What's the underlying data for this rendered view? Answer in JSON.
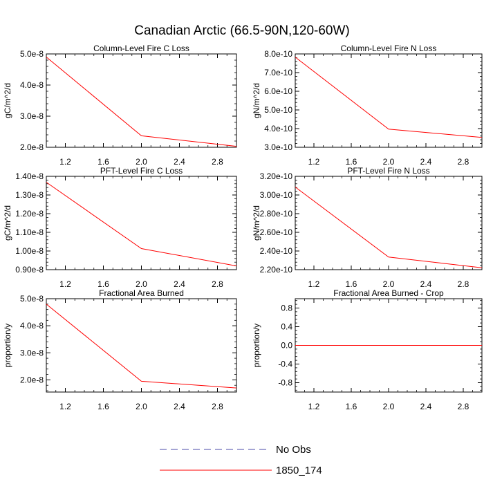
{
  "figure_title": "Canadian Arctic (66.5-90N,120-60W)",
  "legend": {
    "entries": [
      {
        "label": "No Obs",
        "color": "#4a4aa8",
        "style": "dashed"
      },
      {
        "label": "1850_174",
        "color": "#ff0000",
        "style": "solid"
      }
    ]
  },
  "chart_data": [
    {
      "type": "line",
      "title": "Column-Level Fire C Loss",
      "ylabel": "gC/m^2/d",
      "xlim": [
        1,
        3
      ],
      "ylim": [
        2e-08,
        5e-08
      ],
      "xticks": [
        1.2,
        1.6,
        2.0,
        2.4,
        2.8
      ],
      "xtick_labels": [
        "1.2",
        "1.6",
        "2.0",
        "2.4",
        "2.8"
      ],
      "yticks": [
        2e-08,
        3e-08,
        4e-08,
        5e-08
      ],
      "ytick_labels": [
        "2.0e-8",
        "3.0e-8",
        "4.0e-8",
        "5.0e-8"
      ],
      "series": [
        {
          "name": "1850_174",
          "color": "#ff0000",
          "x": [
            1,
            2,
            3
          ],
          "y": [
            4.9e-08,
            2.37e-08,
            2.03e-08
          ]
        }
      ]
    },
    {
      "type": "line",
      "title": "Column-Level Fire N Loss",
      "ylabel": "gN/m^2/d",
      "xlim": [
        1,
        3
      ],
      "ylim": [
        3e-10,
        8e-10
      ],
      "xticks": [
        1.2,
        1.6,
        2.0,
        2.4,
        2.8
      ],
      "xtick_labels": [
        "1.2",
        "1.6",
        "2.0",
        "2.4",
        "2.8"
      ],
      "yticks": [
        3e-10,
        4e-10,
        5e-10,
        6e-10,
        7e-10,
        8e-10
      ],
      "ytick_labels": [
        "3.0e-10",
        "4.0e-10",
        "5.0e-10",
        "6.0e-10",
        "7.0e-10",
        "8.0e-10"
      ],
      "series": [
        {
          "name": "1850_174",
          "color": "#ff0000",
          "x": [
            1,
            2,
            3
          ],
          "y": [
            7.83e-10,
            3.97e-10,
            3.53e-10
          ]
        }
      ]
    },
    {
      "type": "line",
      "title": "PFT-Level Fire C Loss",
      "ylabel": "gC/m^2/d",
      "xlim": [
        1,
        3
      ],
      "ylim": [
        9e-09,
        1.4e-08
      ],
      "xticks": [
        1.2,
        1.6,
        2.0,
        2.4,
        2.8
      ],
      "xtick_labels": [
        "1.2",
        "1.6",
        "2.0",
        "2.4",
        "2.8"
      ],
      "yticks": [
        9e-09,
        1e-08,
        1.1e-08,
        1.2e-08,
        1.3e-08,
        1.4e-08
      ],
      "ytick_labels": [
        "0.90e-8",
        "1.00e-8",
        "1.10e-8",
        "1.20e-8",
        "1.30e-8",
        "1.40e-8"
      ],
      "series": [
        {
          "name": "1850_174",
          "color": "#ff0000",
          "x": [
            1,
            2,
            3
          ],
          "y": [
            1.368e-08,
            1.013e-08,
            9.2e-09
          ]
        }
      ]
    },
    {
      "type": "line",
      "title": "PFT-Level Fire N Loss",
      "ylabel": "gN/m^2/d",
      "xlim": [
        1,
        3
      ],
      "ylim": [
        2.2e-10,
        3.2e-10
      ],
      "xticks": [
        1.2,
        1.6,
        2.0,
        2.4,
        2.8
      ],
      "xtick_labels": [
        "1.2",
        "1.6",
        "2.0",
        "2.4",
        "2.8"
      ],
      "yticks": [
        2.2e-10,
        2.4e-10,
        2.6e-10,
        2.8e-10,
        3e-10,
        3.2e-10
      ],
      "ytick_labels": [
        "2.20e-10",
        "2.40e-10",
        "2.60e-10",
        "2.80e-10",
        "3.00e-10",
        "3.20e-10"
      ],
      "series": [
        {
          "name": "1850_174",
          "color": "#ff0000",
          "x": [
            1,
            2,
            3
          ],
          "y": [
            3.085e-10,
            2.335e-10,
            2.22e-10
          ]
        }
      ]
    },
    {
      "type": "line",
      "title": "Fractional Area Burned",
      "ylabel": "proportion/y",
      "xlim": [
        1,
        3
      ],
      "ylim": [
        1.55e-08,
        5e-08
      ],
      "xticks": [
        1.2,
        1.6,
        2.0,
        2.4,
        2.8
      ],
      "xtick_labels": [
        "1.2",
        "1.6",
        "2.0",
        "2.4",
        "2.8"
      ],
      "yticks": [
        2e-08,
        3e-08,
        4e-08,
        5e-08
      ],
      "ytick_labels": [
        "2.0e-8",
        "3.0e-8",
        "4.0e-8",
        "5.0e-8"
      ],
      "series": [
        {
          "name": "1850_174",
          "color": "#ff0000",
          "x": [
            1,
            2,
            3
          ],
          "y": [
            4.8e-08,
            1.95e-08,
            1.7e-08
          ]
        }
      ]
    },
    {
      "type": "line",
      "title": "Fractional Area Burned - Crop",
      "ylabel": "proportion/y",
      "xlim": [
        1,
        3
      ],
      "ylim": [
        -1.0,
        1.0
      ],
      "xticks": [
        1.2,
        1.6,
        2.0,
        2.4,
        2.8
      ],
      "xtick_labels": [
        "1.2",
        "1.6",
        "2.0",
        "2.4",
        "2.8"
      ],
      "yticks": [
        -0.8,
        -0.4,
        0.0,
        0.4,
        0.8
      ],
      "ytick_labels": [
        "-0.8",
        "-0.4",
        "0.0",
        "0.4",
        "0.8"
      ],
      "series": [
        {
          "name": "1850_174",
          "color": "#ff0000",
          "x": [
            1,
            2,
            3
          ],
          "y": [
            0,
            0,
            0
          ]
        }
      ]
    }
  ]
}
